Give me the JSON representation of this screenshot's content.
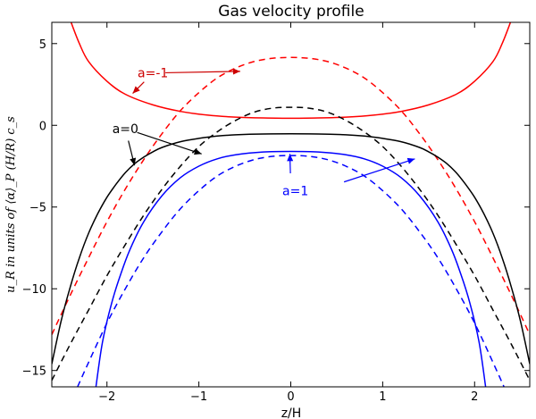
{
  "chart_data": {
    "type": "line",
    "title": "Gas velocity profile",
    "xlabel": "z/H",
    "ylabel": "u_R in units of ⟨α⟩_P (H/R) c_s",
    "xlim": [
      -2.6,
      2.6
    ],
    "ylim": [
      -16,
      6.3
    ],
    "xticks": [
      -2,
      -1,
      0,
      1,
      2
    ],
    "yticks": [
      5,
      0,
      -5,
      -10,
      -15
    ],
    "grid": false,
    "series": [
      {
        "id": "solid_a_m1",
        "color": "#ff0000",
        "dash": "solid",
        "x": [
          -2.39,
          -2.3,
          -2.2,
          -2.0,
          -1.8,
          -1.5,
          -1.2,
          -0.9,
          -0.6,
          -0.3,
          0.0,
          0.3,
          0.6,
          0.9,
          1.2,
          1.5,
          1.8,
          2.0,
          2.2,
          2.3,
          2.39
        ],
        "y": [
          6.3,
          5.0,
          3.9,
          2.7,
          1.9,
          1.25,
          0.85,
          0.62,
          0.5,
          0.45,
          0.43,
          0.45,
          0.5,
          0.62,
          0.85,
          1.25,
          1.9,
          2.7,
          3.9,
          5.0,
          6.3
        ]
      },
      {
        "id": "dashed_a_m1",
        "color": "#ff0000",
        "dash": "dashed",
        "x": [
          -2.6,
          -2.4,
          -2.2,
          -2.0,
          -1.8,
          -1.6,
          -1.4,
          -1.2,
          -1.0,
          -0.8,
          -0.6,
          -0.4,
          -0.2,
          0.0,
          0.2,
          0.4,
          0.6,
          0.8,
          1.0,
          1.2,
          1.4,
          1.6,
          1.8,
          2.0,
          2.2,
          2.4,
          2.6
        ],
        "y": [
          -12.8,
          -10.4,
          -8.1,
          -5.9,
          -3.9,
          -2.1,
          -0.5,
          0.9,
          2.0,
          2.9,
          3.5,
          3.9,
          4.1,
          4.15,
          4.1,
          3.9,
          3.5,
          2.9,
          2.0,
          0.9,
          -0.5,
          -2.1,
          -3.9,
          -5.9,
          -8.1,
          -10.4,
          -12.8
        ]
      },
      {
        "id": "solid_a_0",
        "color": "#000000",
        "dash": "solid",
        "x": [
          -2.6,
          -2.5,
          -2.4,
          -2.3,
          -2.2,
          -2.1,
          -2.0,
          -1.9,
          -1.8,
          -1.7,
          -1.6,
          -1.5,
          -1.4,
          -1.2,
          -1.0,
          -0.8,
          -0.6,
          -0.3,
          0.0,
          0.3,
          0.6,
          0.8,
          1.0,
          1.2,
          1.4,
          1.5,
          1.6,
          1.7,
          1.8,
          1.9,
          2.0,
          2.1,
          2.2,
          2.3,
          2.4,
          2.5,
          2.6
        ],
        "y": [
          -14.6,
          -12.0,
          -9.9,
          -8.1,
          -6.6,
          -5.4,
          -4.4,
          -3.6,
          -2.9,
          -2.35,
          -1.95,
          -1.62,
          -1.35,
          -1.0,
          -0.8,
          -0.66,
          -0.58,
          -0.53,
          -0.52,
          -0.53,
          -0.58,
          -0.66,
          -0.8,
          -1.0,
          -1.35,
          -1.62,
          -1.95,
          -2.35,
          -2.9,
          -3.6,
          -4.4,
          -5.4,
          -6.6,
          -8.1,
          -9.9,
          -12.0,
          -14.6
        ]
      },
      {
        "id": "dashed_a_0",
        "color": "#000000",
        "dash": "dashed",
        "x": [
          -2.6,
          -2.4,
          -2.2,
          -2.0,
          -1.8,
          -1.6,
          -1.4,
          -1.2,
          -1.0,
          -0.8,
          -0.6,
          -0.4,
          -0.2,
          0.0,
          0.2,
          0.4,
          0.6,
          0.8,
          1.0,
          1.2,
          1.4,
          1.6,
          1.8,
          2.0,
          2.2,
          2.4,
          2.6
        ],
        "y": [
          -15.6,
          -13.4,
          -11.3,
          -9.2,
          -7.3,
          -5.5,
          -3.9,
          -2.5,
          -1.3,
          -0.4,
          0.3,
          0.8,
          1.05,
          1.1,
          1.05,
          0.8,
          0.3,
          -0.4,
          -1.3,
          -2.5,
          -3.9,
          -5.5,
          -7.3,
          -9.2,
          -11.3,
          -13.4,
          -15.6
        ]
      },
      {
        "id": "solid_a_1",
        "color": "#0000ff",
        "dash": "solid",
        "x": [
          -2.12,
          -2.05,
          -1.95,
          -1.85,
          -1.75,
          -1.6,
          -1.4,
          -1.2,
          -1.0,
          -0.8,
          -0.6,
          -0.3,
          0.0,
          0.3,
          0.6,
          0.8,
          1.0,
          1.2,
          1.4,
          1.6,
          1.75,
          1.85,
          1.95,
          2.05,
          2.12
        ],
        "y": [
          -16.0,
          -13.3,
          -10.9,
          -9.1,
          -7.6,
          -5.9,
          -4.3,
          -3.2,
          -2.5,
          -2.05,
          -1.8,
          -1.63,
          -1.6,
          -1.63,
          -1.8,
          -2.05,
          -2.5,
          -3.2,
          -4.3,
          -5.9,
          -7.6,
          -9.1,
          -10.9,
          -13.3,
          -16.0
        ]
      },
      {
        "id": "dashed_a_1",
        "color": "#0000ff",
        "dash": "dashed",
        "x": [
          -2.32,
          -2.2,
          -2.0,
          -1.8,
          -1.6,
          -1.4,
          -1.2,
          -1.0,
          -0.8,
          -0.6,
          -0.4,
          -0.2,
          0.0,
          0.2,
          0.4,
          0.6,
          0.8,
          1.0,
          1.2,
          1.4,
          1.6,
          1.8,
          2.0,
          2.2,
          2.32
        ],
        "y": [
          -16.0,
          -14.5,
          -12.1,
          -10.0,
          -8.1,
          -6.5,
          -5.1,
          -4.0,
          -3.1,
          -2.5,
          -2.1,
          -1.9,
          -1.85,
          -1.9,
          -2.1,
          -2.5,
          -3.1,
          -4.0,
          -5.1,
          -6.5,
          -8.1,
          -10.0,
          -12.1,
          -14.5,
          -16.0
        ]
      }
    ],
    "annotations": [
      {
        "id": "a_m1",
        "text": "a=-1",
        "color": "#cc0000",
        "text_at": [
          -1.5,
          3.2
        ],
        "arrows": [
          [
            -1.5,
            3.2,
            -0.55,
            3.3
          ],
          [
            -1.5,
            3.2,
            -1.72,
            1.95
          ]
        ]
      },
      {
        "id": "a_0",
        "text": "a=0",
        "color": "#000000",
        "text_at": [
          -1.8,
          -0.2
        ],
        "arrows": [
          [
            -1.8,
            -0.2,
            -0.97,
            -1.75
          ],
          [
            -1.8,
            -0.2,
            -1.7,
            -2.45
          ]
        ]
      },
      {
        "id": "a_1",
        "text": "a=1",
        "color": "#0000ff",
        "text_at": [
          0.05,
          -4.0
        ],
        "arrows": [
          [
            0.0,
            -3.7,
            -0.01,
            -1.75
          ],
          [
            0.45,
            -3.7,
            1.35,
            -2.05
          ]
        ]
      }
    ]
  }
}
